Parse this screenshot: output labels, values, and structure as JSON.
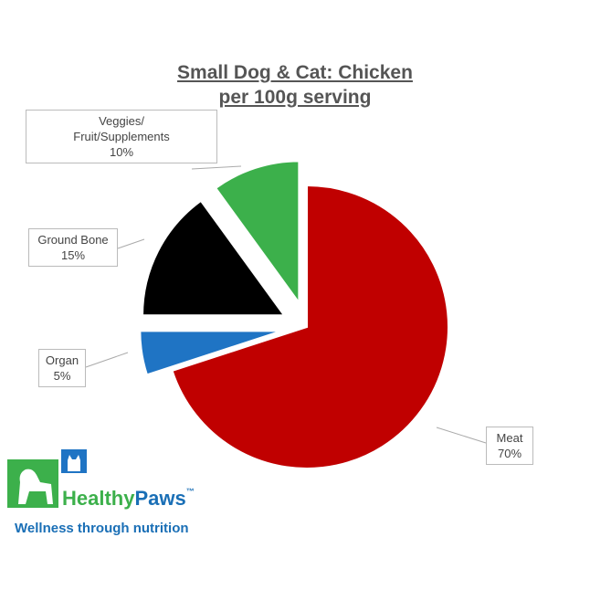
{
  "chart_data": {
    "type": "pie",
    "title": "Small Dog & Cat: Chicken\nper 100g serving",
    "categories": [
      "Meat",
      "Organ",
      "Ground Bone",
      "Veggies/\nFruit/Supplements"
    ],
    "values": [
      70,
      5,
      15,
      10
    ],
    "value_labels": [
      "70%",
      "5%",
      "15%",
      "10%"
    ],
    "colors": [
      "#c00000",
      "#1f74c4",
      "#000000",
      "#3cb04b"
    ]
  },
  "logo": {
    "brand_first": "Healthy",
    "brand_second": "Paws",
    "trademark": "™",
    "tagline": "Wellness through nutrition"
  }
}
